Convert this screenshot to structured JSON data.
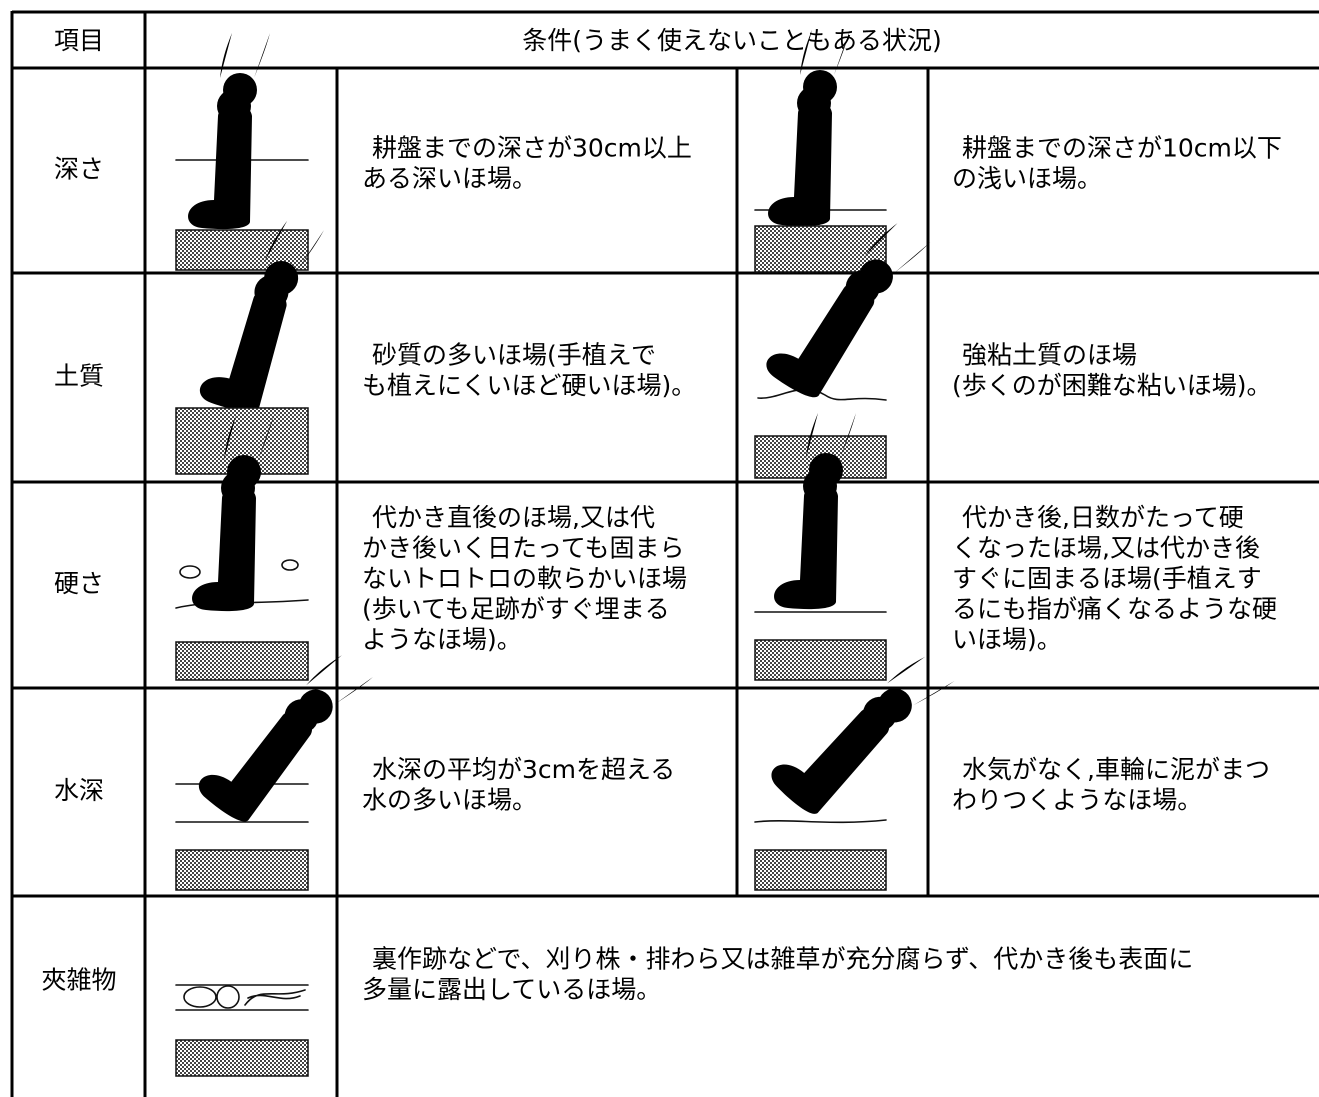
{
  "table": {
    "header": [
      "項目",
      "条件(うまく使えないこともある状況)"
    ],
    "rows": [
      {
        "item": "深さ",
        "conditions": [
          [
            "耕盤までの深さが30cm以上",
            "ある深いほ場。"
          ],
          [
            "耕盤までの深さが10cm以下",
            "の浅いほ場。"
          ]
        ]
      },
      {
        "item": "土質",
        "conditions": [
          [
            "砂質の多いほ場(手植えで",
            "も植えにくいほど硬いほ場)。"
          ],
          [
            "強粘土質のほ場",
            "(歩くのが困難な粘いほ場)。"
          ]
        ]
      },
      {
        "item": "硬さ",
        "conditions": [
          [
            "代かき直後のほ場,又は代",
            "かき後いく日たっても固まら",
            "ないトロトロの軟らかいほ場",
            "(歩いても足跡がすぐ埋まる",
            "ようなほ場)。"
          ],
          [
            "代かき後,日数がたって硬",
            "くなったほ場,又は代かき後",
            "すぐに固まるほ場(手植えす",
            "るにも指が痛くなるような硬",
            "いほ場)。"
          ]
        ]
      },
      {
        "item": "水深",
        "conditions": [
          [
            "水深の平均が3cmを超える",
            "水の多いほ場。"
          ],
          [
            "水気がなく,車輪に泥がまつ",
            "わりつくようなほ場。"
          ]
        ]
      },
      {
        "item": "夾雑物",
        "conditions": [
          [
            "裏作跡などで、刈り株・排わら又は雑草が充分腐らず、代かき後も表面に",
            "多量に露出しているほ場。"
          ]
        ]
      }
    ]
  }
}
